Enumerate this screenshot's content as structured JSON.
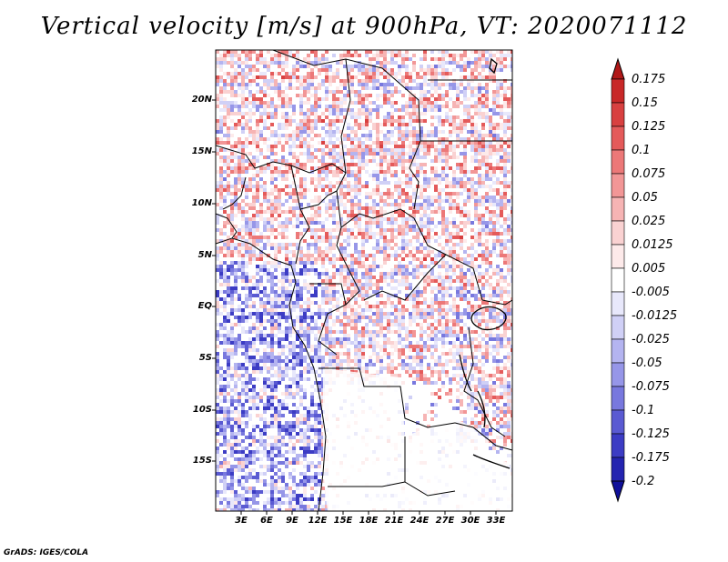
{
  "title": "Vertical velocity [m/s] at 900hPa, VT: 2020071112",
  "footer": "GrADS: IGES/COLA",
  "map": {
    "lon_range": [
      0,
      35
    ],
    "lat_range": [
      -20,
      25
    ],
    "lat_labels": [
      "20N",
      "15N",
      "10N",
      "5N",
      "EQ",
      "5S",
      "10S",
      "15S"
    ],
    "lon_labels": [
      "3E",
      "6E",
      "9E",
      "12E",
      "15E",
      "18E",
      "21E",
      "24E",
      "27E",
      "30E",
      "33E"
    ]
  },
  "colorbar": {
    "labels": [
      "0.175",
      "0.15",
      "0.125",
      "0.1",
      "0.075",
      "0.05",
      "0.025",
      "0.0125",
      "0.005",
      "-0.005",
      "-0.0125",
      "-0.025",
      "-0.05",
      "-0.075",
      "-0.1",
      "-0.125",
      "-0.175",
      "-0.2"
    ],
    "colors": [
      "#b01818",
      "#c82828",
      "#d84040",
      "#e45a5a",
      "#ec7878",
      "#f29696",
      "#f6b4b4",
      "#fad2d2",
      "#fdeaea",
      "#ffffff",
      "#e8e8fb",
      "#d0d0f6",
      "#b4b4f0",
      "#9696e8",
      "#7878de",
      "#5a5ad2",
      "#3c3cc4",
      "#2424b0",
      "#10109a"
    ]
  }
}
